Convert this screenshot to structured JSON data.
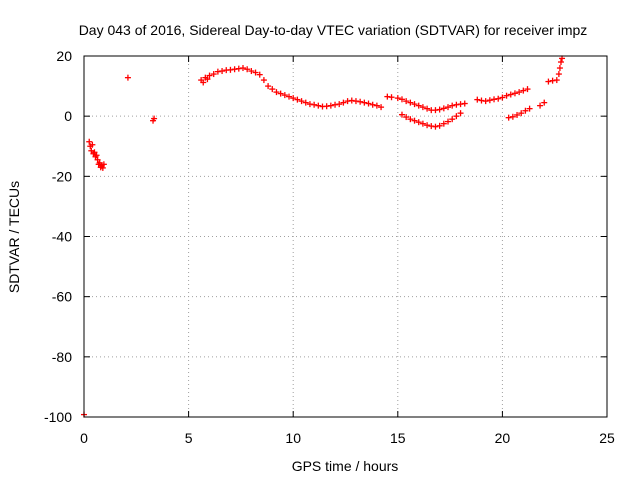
{
  "chart_data": {
    "type": "scatter",
    "title": "Day 043 of 2016, Sidereal Day-to-day VTEC variation (SDTVAR) for receiver impz",
    "xlabel": "GPS time / hours",
    "ylabel": "SDTVAR / TECUs",
    "xlim": [
      0,
      25
    ],
    "ylim": [
      -100,
      20
    ],
    "xticks": [
      0,
      5,
      10,
      15,
      20,
      25
    ],
    "yticks": [
      -100,
      -80,
      -60,
      -40,
      -20,
      0,
      20
    ],
    "grid": true,
    "marker": "+",
    "color": "#ff0000",
    "series": [
      {
        "name": "SDTVAR",
        "points": [
          [
            0.0,
            -99.2
          ],
          [
            0.25,
            -8.5
          ],
          [
            0.3,
            -10.0
          ],
          [
            0.35,
            -11.5
          ],
          [
            0.4,
            -9.5
          ],
          [
            0.45,
            -12.5
          ],
          [
            0.5,
            -12.0
          ],
          [
            0.55,
            -13.5
          ],
          [
            0.6,
            -13.0
          ],
          [
            0.65,
            -14.5
          ],
          [
            0.7,
            -16.0
          ],
          [
            0.75,
            -15.5
          ],
          [
            0.8,
            -17.0
          ],
          [
            0.85,
            -16.5
          ],
          [
            0.9,
            -17.2
          ],
          [
            0.95,
            -16.0
          ],
          [
            2.1,
            12.8
          ],
          [
            3.3,
            -1.5
          ],
          [
            3.35,
            -0.8
          ],
          [
            5.6,
            12.0
          ],
          [
            5.7,
            11.2
          ],
          [
            5.8,
            12.8
          ],
          [
            5.9,
            12.3
          ],
          [
            6.0,
            13.5
          ],
          [
            6.2,
            14.0
          ],
          [
            6.4,
            14.8
          ],
          [
            6.6,
            15.0
          ],
          [
            6.8,
            15.3
          ],
          [
            7.0,
            15.4
          ],
          [
            7.2,
            15.6
          ],
          [
            7.4,
            15.8
          ],
          [
            7.6,
            16.0
          ],
          [
            7.8,
            15.6
          ],
          [
            8.0,
            15.0
          ],
          [
            8.2,
            14.5
          ],
          [
            8.4,
            13.8
          ],
          [
            8.6,
            12.0
          ],
          [
            8.8,
            10.0
          ],
          [
            9.0,
            9.0
          ],
          [
            9.2,
            8.0
          ],
          [
            9.4,
            7.5
          ],
          [
            9.6,
            7.0
          ],
          [
            9.8,
            6.5
          ],
          [
            10.0,
            6.0
          ],
          [
            10.2,
            5.5
          ],
          [
            10.4,
            5.0
          ],
          [
            10.6,
            4.5
          ],
          [
            10.8,
            4.0
          ],
          [
            11.0,
            3.8
          ],
          [
            11.2,
            3.5
          ],
          [
            11.4,
            3.2
          ],
          [
            11.6,
            3.3
          ],
          [
            11.8,
            3.5
          ],
          [
            12.0,
            3.8
          ],
          [
            12.2,
            4.0
          ],
          [
            12.4,
            4.5
          ],
          [
            12.6,
            5.0
          ],
          [
            12.8,
            5.2
          ],
          [
            13.0,
            5.0
          ],
          [
            13.2,
            4.8
          ],
          [
            13.4,
            4.5
          ],
          [
            13.6,
            4.2
          ],
          [
            13.8,
            3.8
          ],
          [
            14.0,
            3.5
          ],
          [
            14.2,
            3.0
          ],
          [
            14.5,
            6.5
          ],
          [
            14.7,
            6.3
          ],
          [
            15.0,
            6.0
          ],
          [
            15.2,
            5.6
          ],
          [
            15.4,
            5.0
          ],
          [
            15.6,
            4.5
          ],
          [
            15.8,
            4.0
          ],
          [
            16.0,
            3.5
          ],
          [
            16.2,
            3.0
          ],
          [
            16.4,
            2.5
          ],
          [
            16.6,
            2.0
          ],
          [
            16.8,
            2.0
          ],
          [
            17.0,
            2.2
          ],
          [
            17.2,
            2.6
          ],
          [
            17.4,
            3.0
          ],
          [
            17.6,
            3.5
          ],
          [
            17.8,
            3.8
          ],
          [
            18.0,
            4.0
          ],
          [
            18.2,
            4.2
          ],
          [
            15.2,
            0.5
          ],
          [
            15.4,
            -0.3
          ],
          [
            15.6,
            -1.0
          ],
          [
            15.8,
            -1.5
          ],
          [
            16.0,
            -2.0
          ],
          [
            16.2,
            -2.5
          ],
          [
            16.4,
            -3.0
          ],
          [
            16.6,
            -3.3
          ],
          [
            16.8,
            -3.5
          ],
          [
            17.0,
            -3.2
          ],
          [
            17.2,
            -2.5
          ],
          [
            17.4,
            -1.8
          ],
          [
            17.6,
            -1.0
          ],
          [
            17.8,
            0.0
          ],
          [
            18.0,
            1.0
          ],
          [
            18.8,
            5.5
          ],
          [
            19.0,
            5.2
          ],
          [
            19.2,
            5.0
          ],
          [
            19.4,
            5.3
          ],
          [
            19.6,
            5.6
          ],
          [
            19.8,
            5.8
          ],
          [
            20.0,
            6.2
          ],
          [
            20.2,
            6.8
          ],
          [
            20.4,
            7.2
          ],
          [
            20.6,
            7.6
          ],
          [
            20.8,
            8.0
          ],
          [
            21.0,
            8.5
          ],
          [
            21.2,
            9.0
          ],
          [
            20.3,
            -0.5
          ],
          [
            20.5,
            -0.2
          ],
          [
            20.7,
            0.4
          ],
          [
            20.9,
            1.0
          ],
          [
            21.1,
            1.8
          ],
          [
            21.3,
            2.5
          ],
          [
            21.8,
            3.5
          ],
          [
            22.0,
            4.5
          ],
          [
            22.2,
            11.5
          ],
          [
            22.4,
            11.8
          ],
          [
            22.6,
            12.0
          ],
          [
            22.7,
            14.0
          ],
          [
            22.75,
            16.0
          ],
          [
            22.8,
            18.0
          ],
          [
            22.85,
            19.2
          ]
        ]
      }
    ]
  }
}
